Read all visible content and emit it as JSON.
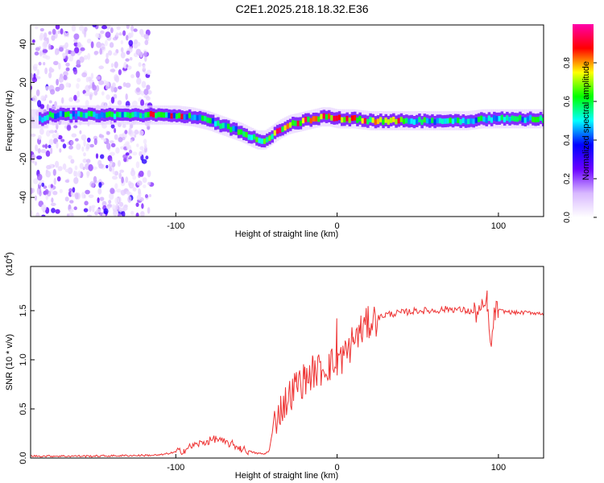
{
  "title": "C2E1.2025.218.18.32.E36",
  "chart_data": [
    {
      "type": "heatmap",
      "xlabel": "Height of straight line (km)",
      "ylabel": "Frequency (Hz)",
      "xlim": [
        -190,
        128
      ],
      "ylim": [
        -50,
        50
      ],
      "xticks": [
        -100,
        0,
        100
      ],
      "yticks": [
        40,
        20,
        0,
        -20,
        -40
      ],
      "ridge_frequency_hz": {
        "x": [
          -180,
          -150,
          -120,
          -100,
          -90,
          -80,
          -70,
          -60,
          -50,
          -45,
          -40,
          -35,
          -30,
          -25,
          -20,
          -15,
          -10,
          -5,
          0,
          10,
          20,
          30,
          40,
          60,
          80,
          90,
          100,
          110,
          128
        ],
        "y": [
          3,
          3,
          3,
          3,
          2,
          0,
          -3,
          -6,
          -10,
          -10,
          -7,
          -4,
          -2,
          -1,
          0,
          1,
          2,
          2,
          1,
          1,
          0,
          0,
          0,
          0,
          0,
          1,
          1,
          1,
          1
        ]
      },
      "noise_region_x": [
        -190,
        -115
      ],
      "colorbar": {
        "label": "Normalized spectral amplitude",
        "range": [
          0,
          1
        ],
        "ticks": [
          "0.0",
          "0.2",
          "0.4",
          "0.6",
          "0.8"
        ],
        "colors": [
          "#ffffff",
          "#d8b8ff",
          "#6a00ff",
          "#0000ff",
          "#00ffff",
          "#00ff00",
          "#ffff00",
          "#ff0000",
          "#ff00aa"
        ]
      }
    },
    {
      "type": "line",
      "xlabel": "Height of straight line (km)",
      "ylabel": "SNR (10 * v/v)",
      "scale_label": "(x10",
      "scale_exponent": "4",
      "xlim": [
        -190,
        128
      ],
      "ylim": [
        0,
        1.95
      ],
      "xticks": [
        -100,
        0,
        100
      ],
      "yticks": [
        "0.0",
        "0.5",
        "1.0",
        "1.5"
      ],
      "color": "#ee3333",
      "x": [
        -190,
        -150,
        -110,
        -100,
        -95,
        -90,
        -85,
        -80,
        -75,
        -70,
        -65,
        -60,
        -55,
        -50,
        -45,
        -42,
        -40,
        -37,
        -35,
        -30,
        -25,
        -20,
        -15,
        -10,
        -5,
        0,
        5,
        10,
        15,
        20,
        25,
        30,
        40,
        50,
        60,
        70,
        80,
        85,
        90,
        93,
        95,
        98,
        100,
        110,
        120,
        128
      ],
      "y": [
        0.02,
        0.02,
        0.03,
        0.06,
        0.08,
        0.12,
        0.15,
        0.17,
        0.2,
        0.16,
        0.14,
        0.1,
        0.07,
        0.05,
        0.04,
        0.08,
        0.28,
        0.45,
        0.5,
        0.62,
        0.75,
        0.8,
        0.88,
        0.9,
        0.95,
        0.97,
        1.05,
        1.2,
        1.3,
        1.38,
        1.42,
        1.46,
        1.48,
        1.5,
        1.5,
        1.52,
        1.5,
        1.48,
        1.5,
        1.6,
        1.1,
        1.5,
        1.5,
        1.48,
        1.48,
        1.47
      ]
    }
  ]
}
